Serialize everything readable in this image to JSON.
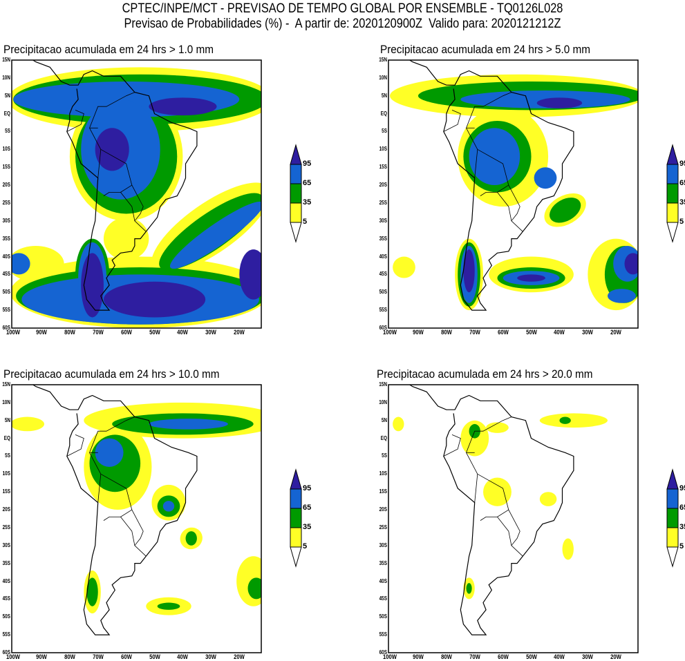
{
  "header": {
    "line1": "CPTEC/INPE/MCT - PREVISAO DE TEMPO GLOBAL POR ENSEMBLE - TQ0126L028",
    "line2": "Previsao de Probabilidades (%) -  A partir de: 2020120900Z  Valido para: 2020121212Z"
  },
  "panels": [
    {
      "title": "Precipitacao acumulada em 24 hrs > 1.0 mm",
      "threshold_mm": 1.0
    },
    {
      "title": "Precipitacao acumulada em 24 hrs > 5.0 mm",
      "threshold_mm": 5.0
    },
    {
      "title": "Precipitacao acumulada em 24 hrs > 10.0 mm",
      "threshold_mm": 10.0
    },
    {
      "title": "Precipitacao acumulada em 24 hrs > 20.0 mm",
      "threshold_mm": 20.0
    }
  ],
  "lat_ticks": [
    "15N",
    "10N",
    "5N",
    "EQ",
    "5S",
    "10S",
    "15S",
    "20S",
    "25S",
    "30S",
    "35S",
    "40S",
    "45S",
    "50S",
    "55S",
    "60S"
  ],
  "lon_ticks": [
    "100W",
    "90W",
    "80W",
    "70W",
    "60W",
    "50W",
    "40W",
    "30W",
    "20W"
  ],
  "legend": {
    "levels": [
      "95",
      "65",
      "35",
      "5"
    ],
    "colors": {
      "below5": "#ffffff",
      "5-35": "#ffff26",
      "35-65": "#009a00",
      "65-95": "#1564d2",
      "above95": "#2e1ea0"
    }
  }
}
